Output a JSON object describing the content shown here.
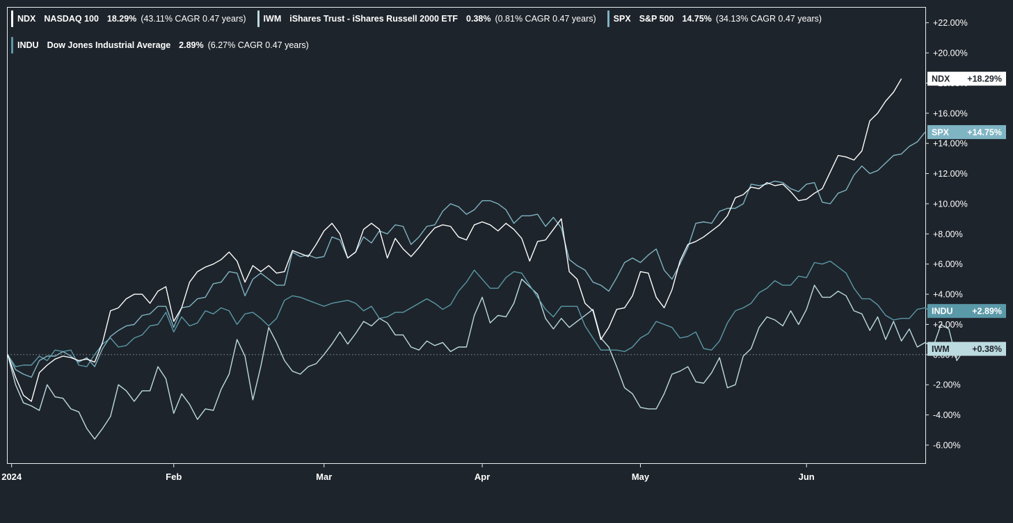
{
  "legend": [
    {
      "symbol": "NDX",
      "name": "NASDAQ 100",
      "pct": "18.29%",
      "cagr": "(43.11% CAGR 0.47 years)",
      "color": "#ffffff"
    },
    {
      "symbol": "IWM",
      "name": "iShares Trust - iShares Russell 2000 ETF",
      "pct": "0.38%",
      "cagr": "(0.81% CAGR 0.47 years)",
      "color": "#bcdbe0"
    },
    {
      "symbol": "SPX",
      "name": "S&P 500",
      "pct": "14.75%",
      "cagr": "(34.13% CAGR 0.47 years)",
      "color": "#7fb4c3"
    },
    {
      "symbol": "INDU",
      "name": "Dow Jones Industrial Average",
      "pct": "2.89%",
      "cagr": "(6.27% CAGR 0.47 years)",
      "color": "#5a99a8"
    }
  ],
  "chart_data": {
    "type": "line",
    "title": "",
    "xlabel": "",
    "ylabel": "",
    "ylim": [
      -7.2,
      23.0
    ],
    "y_ticks": [
      -6,
      -4,
      -2,
      0,
      2,
      4,
      6,
      8,
      10,
      12,
      14,
      16,
      18,
      20,
      22
    ],
    "y_tick_labels": [
      "-6.00%",
      "-4.00%",
      "-2.00%",
      "0.00%",
      "+2.00%",
      "+4.00%",
      "+6.00%",
      "+8.00%",
      "+10.00%",
      "+12.00%",
      "+14.00%",
      "+16.00%",
      "+18.00%",
      "+20.00%",
      "+22.00%"
    ],
    "x_range": [
      0,
      114
    ],
    "x_ticks": [
      {
        "label": "2024",
        "x": 0.5
      },
      {
        "label": "Feb",
        "x": 21
      },
      {
        "label": "Mar",
        "x": 40
      },
      {
        "label": "Apr",
        "x": 60
      },
      {
        "label": "May",
        "x": 80
      },
      {
        "label": "Jun",
        "x": 101
      }
    ],
    "zero_line": true,
    "grid": false,
    "legend_position": "top-left",
    "series": [
      {
        "name": "IWM",
        "color": "#bcdbe0",
        "end_label": "IWM",
        "end_value": "+0.38%",
        "values": [
          0,
          -2.0,
          -3.2,
          -3.4,
          -3.7,
          -2.0,
          -2.8,
          -2.9,
          -3.6,
          -3.8,
          -4.9,
          -5.6,
          -4.9,
          -4.1,
          -2.0,
          -2.4,
          -3.1,
          -2.4,
          -2.4,
          -0.8,
          -1.6,
          -3.9,
          -2.6,
          -3.3,
          -4.3,
          -3.6,
          -3.7,
          -2.3,
          -1.3,
          1.0,
          -0.1,
          -3.0,
          -0.8,
          1.8,
          0.8,
          -0.4,
          -1.1,
          -1.3,
          -0.8,
          -0.6,
          0.0,
          0.7,
          1.5,
          0.7,
          1.4,
          2.2,
          1.9,
          2.4,
          2.1,
          1.3,
          1.3,
          0.5,
          0.3,
          0.9,
          0.6,
          0.8,
          0.2,
          0.5,
          0.5,
          2.6,
          3.8,
          2.1,
          2.6,
          2.5,
          3.4,
          5.0,
          4.5,
          4.0,
          2.4,
          1.7,
          2.4,
          1.8,
          2.2,
          2.6,
          3.0,
          1.1,
          0.5,
          -0.8,
          -2.2,
          -2.6,
          -3.5,
          -3.6,
          -3.6,
          -2.6,
          -1.3,
          -1.1,
          -0.8,
          -1.8,
          -1.9,
          -1.2,
          -0.2,
          -2.2,
          -2.0,
          -0.1,
          0.4,
          1.8,
          2.5,
          2.3,
          1.9,
          2.9,
          2.0,
          3.0,
          4.6,
          3.8,
          3.8,
          4.2,
          3.9,
          2.9,
          2.7,
          1.6,
          2.5,
          1.0,
          2.2,
          0.9,
          1.7,
          0.5,
          0.8,
          0.5,
          2.0,
          1.7,
          -0.4,
          0.38
        ]
      },
      {
        "name": "INDU",
        "color": "#5a99a8",
        "end_label": "INDU",
        "end_value": "+2.89%",
        "values": [
          0,
          -0.8,
          -0.7,
          -0.7,
          -0.1,
          -0.4,
          0.3,
          0.2,
          0.3,
          -0.7,
          -0.8,
          0.0,
          0.7,
          1.1,
          0.5,
          0.6,
          1.1,
          1.3,
          1.9,
          2.0,
          2.8,
          1.5,
          2.5,
          1.9,
          2.1,
          2.9,
          2.7,
          3.1,
          2.9,
          2.0,
          2.7,
          2.8,
          2.4,
          1.9,
          2.4,
          3.6,
          3.9,
          3.8,
          3.6,
          3.4,
          3.2,
          3.4,
          3.5,
          3.6,
          3.4,
          2.9,
          3.2,
          2.4,
          2.5,
          2.8,
          2.8,
          3.1,
          3.4,
          3.7,
          3.4,
          3.0,
          3.3,
          4.2,
          4.8,
          5.6,
          5.0,
          4.4,
          4.4,
          5.1,
          5.5,
          5.4,
          4.6,
          3.8,
          3.0,
          2.5,
          3.2,
          3.2,
          3.2,
          1.9,
          1.1,
          0.3,
          0.3,
          0.3,
          0.2,
          0.5,
          1.1,
          1.4,
          2.2,
          2.0,
          1.8,
          1.1,
          1.2,
          1.5,
          0.4,
          0.3,
          0.9,
          2.1,
          2.9,
          3.1,
          3.4,
          4.1,
          4.4,
          4.9,
          4.6,
          4.6,
          5.2,
          5.1,
          6.1,
          6.0,
          6.2,
          5.8,
          5.4,
          4.4,
          3.7,
          3.7,
          3.3,
          2.6,
          2.3,
          2.4,
          2.4,
          3.0,
          3.1,
          2.8,
          3.0,
          2.8,
          2.7,
          2.5,
          2.89
        ]
      },
      {
        "name": "SPX",
        "color": "#7fb4c3",
        "end_label": "SPX",
        "end_value": "+14.75%",
        "values": [
          0,
          -1.0,
          -1.3,
          -1.5,
          -0.4,
          -0.1,
          -0.1,
          0.2,
          -0.1,
          -0.5,
          -0.2,
          -0.8,
          0.4,
          1.2,
          1.6,
          1.9,
          2.0,
          2.6,
          2.7,
          3.2,
          3.2,
          1.8,
          3.1,
          3.2,
          3.7,
          3.8,
          4.7,
          4.8,
          5.5,
          5.4,
          3.9,
          5.0,
          5.4,
          5.0,
          4.6,
          4.6,
          6.8,
          6.5,
          6.6,
          6.4,
          6.5,
          7.8,
          7.6,
          6.4,
          6.8,
          7.8,
          7.4,
          8.2,
          8.0,
          8.6,
          8.5,
          7.3,
          7.8,
          8.5,
          8.6,
          9.5,
          10.0,
          9.8,
          9.3,
          9.6,
          10.2,
          10.2,
          10.0,
          9.6,
          8.7,
          9.2,
          9.2,
          9.3,
          8.5,
          9.1,
          8.4,
          6.3,
          5.9,
          5.6,
          4.8,
          4.6,
          4.2,
          5.1,
          6.1,
          6.4,
          6.1,
          6.6,
          7.0,
          5.6,
          5.0,
          6.0,
          7.1,
          8.7,
          8.8,
          8.7,
          9.5,
          9.7,
          9.7,
          10.0,
          11.3,
          11.2,
          11.3,
          11.5,
          11.4,
          11.0,
          10.8,
          11.3,
          11.4,
          10.1,
          10.0,
          10.7,
          10.9,
          11.9,
          12.5,
          12.0,
          12.2,
          12.7,
          13.2,
          13.3,
          13.8,
          14.1,
          14.75
        ]
      },
      {
        "name": "NDX",
        "color": "#ffffff",
        "end_label": "NDX",
        "end_value": "+18.29%",
        "values": [
          0,
          -1.5,
          -2.7,
          -3.1,
          -1.2,
          -0.7,
          -0.3,
          -0.1,
          -0.2,
          -0.4,
          -0.3,
          -0.5,
          0.8,
          2.9,
          3.1,
          3.7,
          4.0,
          4.0,
          3.4,
          4.2,
          4.5,
          2.2,
          3.1,
          4.8,
          5.5,
          5.8,
          6.0,
          6.3,
          6.8,
          6.2,
          4.8,
          5.9,
          5.5,
          5.9,
          5.4,
          5.5,
          6.9,
          6.7,
          6.5,
          7.3,
          8.2,
          8.7,
          8.0,
          6.4,
          6.8,
          8.3,
          8.7,
          8.3,
          6.4,
          7.7,
          7.0,
          6.5,
          7.1,
          7.8,
          8.4,
          8.6,
          8.5,
          7.8,
          7.6,
          8.6,
          8.8,
          8.6,
          8.2,
          8.7,
          8.3,
          7.7,
          6.2,
          7.5,
          7.6,
          8.3,
          9.0,
          5.5,
          5.0,
          3.4,
          2.9,
          1.0,
          1.8,
          3.0,
          3.1,
          3.9,
          5.5,
          5.4,
          3.8,
          3.1,
          4.3,
          6.2,
          7.3,
          7.5,
          7.8,
          8.2,
          8.6,
          9.2,
          10.4,
          10.6,
          11.1,
          11.0,
          11.4,
          11.2,
          11.3,
          10.8,
          10.2,
          10.3,
          10.7,
          11.0,
          12.1,
          13.2,
          13.1,
          12.9,
          13.5,
          15.5,
          16.0,
          16.8,
          17.4,
          18.29
        ]
      }
    ]
  }
}
